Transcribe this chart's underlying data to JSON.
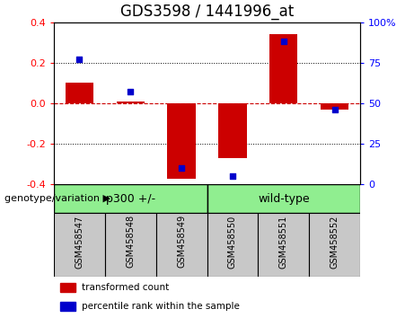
{
  "title": "GDS3598 / 1441996_at",
  "samples": [
    "GSM458547",
    "GSM458548",
    "GSM458549",
    "GSM458550",
    "GSM458551",
    "GSM458552"
  ],
  "red_bars": [
    0.1,
    0.01,
    -0.37,
    -0.27,
    0.34,
    -0.03
  ],
  "blue_dots": [
    77,
    57,
    10,
    5,
    88,
    46
  ],
  "ylim_left": [
    -0.4,
    0.4
  ],
  "ylim_right": [
    0,
    100
  ],
  "yticks_left": [
    -0.4,
    -0.2,
    0.0,
    0.2,
    0.4
  ],
  "yticks_right": [
    0,
    25,
    50,
    75,
    100
  ],
  "ytick_labels_right": [
    "0",
    "25",
    "50",
    "75",
    "100%"
  ],
  "bar_color": "#CC0000",
  "dot_color": "#0000CC",
  "hline_color": "#CC0000",
  "bg_sample_box": "#C8C8C8",
  "bg_group_box": "#90EE90",
  "legend_red": "transformed count",
  "legend_blue": "percentile rank within the sample",
  "title_fontsize": 12,
  "tick_fontsize": 8,
  "sample_fontsize": 7,
  "group_fontsize": 9,
  "legend_fontsize": 7.5,
  "bar_width": 0.55,
  "group_label_text": "genotype/variation ▶",
  "group_label_fontsize": 8
}
